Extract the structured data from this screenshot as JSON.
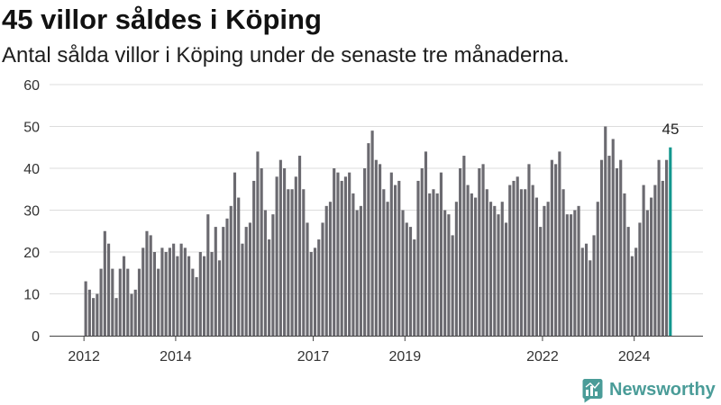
{
  "chart_data": {
    "type": "bar",
    "title": "45 villor såldes i Köping",
    "subtitle": "Antal sålda villor i Köping under de senaste tre månaderna.",
    "xlabel": "",
    "ylabel": "",
    "x": [
      "2012-01",
      "2012-02",
      "2012-03",
      "2012-04",
      "2012-05",
      "2012-06",
      "2012-07",
      "2012-08",
      "2012-09",
      "2012-10",
      "2012-11",
      "2012-12",
      "2013-01",
      "2013-02",
      "2013-03",
      "2013-04",
      "2013-05",
      "2013-06",
      "2013-07",
      "2013-08",
      "2013-09",
      "2013-10",
      "2013-11",
      "2013-12",
      "2014-01",
      "2014-02",
      "2014-03",
      "2014-04",
      "2014-05",
      "2014-06",
      "2014-07",
      "2014-08",
      "2014-09",
      "2014-10",
      "2014-11",
      "2014-12",
      "2015-01",
      "2015-02",
      "2015-03",
      "2015-04",
      "2015-05",
      "2015-06",
      "2015-07",
      "2015-08",
      "2015-09",
      "2015-10",
      "2015-11",
      "2015-12",
      "2016-01",
      "2016-02",
      "2016-03",
      "2016-04",
      "2016-05",
      "2016-06",
      "2016-07",
      "2016-08",
      "2016-09",
      "2016-10",
      "2016-11",
      "2016-12",
      "2017-01",
      "2017-02",
      "2017-03",
      "2017-04",
      "2017-05",
      "2017-06",
      "2017-07",
      "2017-08",
      "2017-09",
      "2017-10",
      "2017-11",
      "2017-12",
      "2018-01",
      "2018-02",
      "2018-03",
      "2018-04",
      "2018-05",
      "2018-06",
      "2018-07",
      "2018-08",
      "2018-09",
      "2018-10",
      "2018-11",
      "2018-12",
      "2019-01",
      "2019-02",
      "2019-03",
      "2019-04",
      "2019-05",
      "2019-06",
      "2019-07",
      "2019-08",
      "2019-09",
      "2019-10",
      "2019-11",
      "2019-12",
      "2020-01",
      "2020-02",
      "2020-03",
      "2020-04",
      "2020-05",
      "2020-06",
      "2020-07",
      "2020-08",
      "2020-09",
      "2020-10",
      "2020-11",
      "2020-12",
      "2021-01",
      "2021-02",
      "2021-03",
      "2021-04",
      "2021-05",
      "2021-06",
      "2021-07",
      "2021-08",
      "2021-09",
      "2021-10",
      "2021-11",
      "2021-12",
      "2022-01",
      "2022-02",
      "2022-03",
      "2022-04",
      "2022-05",
      "2022-06",
      "2022-07",
      "2022-08",
      "2022-09",
      "2022-10",
      "2022-11",
      "2022-12",
      "2023-01",
      "2023-02",
      "2023-03",
      "2023-04",
      "2023-05",
      "2023-06",
      "2023-07",
      "2023-08",
      "2023-09",
      "2023-10",
      "2023-11",
      "2023-12",
      "2024-01",
      "2024-02",
      "2024-03",
      "2024-04",
      "2024-05",
      "2024-06",
      "2024-07",
      "2024-08",
      "2024-09",
      "2024-10"
    ],
    "values": [
      13,
      11,
      9,
      10,
      16,
      25,
      22,
      16,
      9,
      16,
      19,
      16,
      10,
      11,
      16,
      21,
      25,
      24,
      20,
      16,
      21,
      20,
      21,
      22,
      19,
      22,
      21,
      19,
      16,
      14,
      20,
      19,
      29,
      20,
      26,
      18,
      26,
      28,
      31,
      39,
      33,
      22,
      26,
      27,
      37,
      44,
      40,
      30,
      23,
      29,
      38,
      42,
      40,
      35,
      35,
      38,
      43,
      35,
      27,
      20,
      21,
      23,
      27,
      31,
      32,
      40,
      39,
      37,
      38,
      39,
      34,
      30,
      31,
      40,
      46,
      49,
      42,
      41,
      35,
      32,
      39,
      36,
      37,
      30,
      27,
      26,
      23,
      37,
      40,
      44,
      34,
      35,
      34,
      39,
      30,
      29,
      24,
      32,
      40,
      43,
      36,
      34,
      33,
      40,
      41,
      35,
      32,
      31,
      29,
      32,
      27,
      36,
      37,
      38,
      35,
      35,
      41,
      36,
      33,
      26,
      31,
      32,
      42,
      41,
      44,
      35,
      29,
      29,
      30,
      31,
      21,
      22,
      18,
      24,
      32,
      42,
      50,
      43,
      47,
      40,
      42,
      34,
      26,
      19,
      21,
      27,
      36,
      30,
      33,
      36,
      42,
      37,
      42,
      45
    ],
    "xlim": [
      "2011-04",
      "2025-07"
    ],
    "ylim": [
      0,
      60
    ],
    "yticks": [
      0,
      10,
      20,
      30,
      40,
      50,
      60
    ],
    "xticks": [
      "2012",
      "2014",
      "2017",
      "2019",
      "2022",
      "2024"
    ],
    "grid": true,
    "bar_color": "#6b6a70",
    "highlight": {
      "x": "2024-10",
      "value": 45,
      "label": "45",
      "color": "#13978e"
    }
  },
  "logo": {
    "text": "Newsworthy",
    "color": "#4a9c98",
    "icon": "newsworthy-chart-bubble-icon"
  }
}
